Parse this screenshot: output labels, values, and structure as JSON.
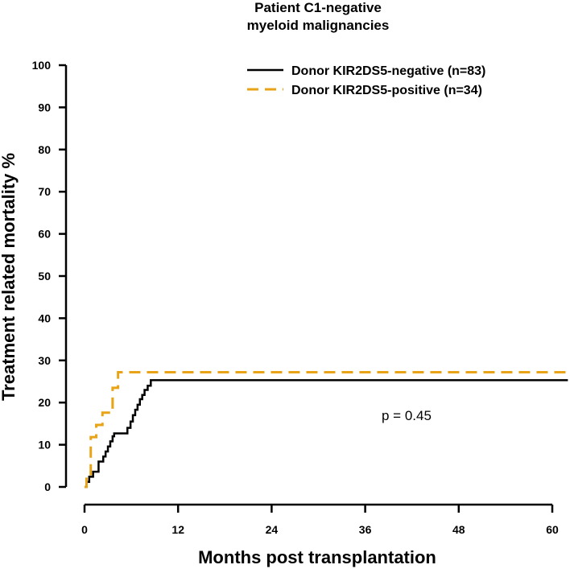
{
  "chart_data": {
    "type": "line",
    "step": true,
    "title_lines": [
      "Patient C1-negative",
      "myeloid malignancies"
    ],
    "xlabel": "Months post transplantation",
    "ylabel": "Treatment related mortality %",
    "xlim": [
      0,
      62
    ],
    "ylim": [
      0,
      100
    ],
    "xticks": [
      0,
      12,
      24,
      36,
      48,
      60
    ],
    "xtick_labels": [
      "0",
      "12",
      "24",
      "36",
      "48",
      "60"
    ],
    "yticks": [
      0,
      10,
      20,
      30,
      40,
      50,
      60,
      70,
      80,
      90,
      100
    ],
    "ytick_labels": [
      "0",
      "10",
      "20",
      "30",
      "40",
      "50",
      "60",
      "70",
      "80",
      "90",
      "100"
    ],
    "annotation": "p = 0.45",
    "legend_position": "top-right",
    "series": [
      {
        "name": "Donor KIR2DS5-negative (n=83)",
        "color": "#000000",
        "dash": "solid",
        "x": [
          0,
          0.25,
          0.6,
          1.1,
          1.8,
          2.4,
          2.7,
          3.0,
          3.3,
          3.6,
          3.8,
          5.5,
          5.9,
          6.2,
          6.5,
          6.8,
          7.1,
          7.4,
          7.7,
          8.1,
          8.5,
          62
        ],
        "y": [
          0,
          1.2,
          2.4,
          3.6,
          6.0,
          7.2,
          8.4,
          9.6,
          10.8,
          12.0,
          12.7,
          14.0,
          15.5,
          17.0,
          18.3,
          19.5,
          20.8,
          21.8,
          23.0,
          24.0,
          25.3,
          25.3
        ]
      },
      {
        "name": "Donor KIR2DS5-positive (n=34)",
        "color": "#E8A317",
        "dash": "dashed",
        "x": [
          0,
          0.25,
          0.8,
          1.5,
          2.3,
          3.6,
          4.3,
          62
        ],
        "y": [
          0,
          3.0,
          11.8,
          14.7,
          17.6,
          23.5,
          27.2,
          27.2
        ]
      }
    ]
  }
}
